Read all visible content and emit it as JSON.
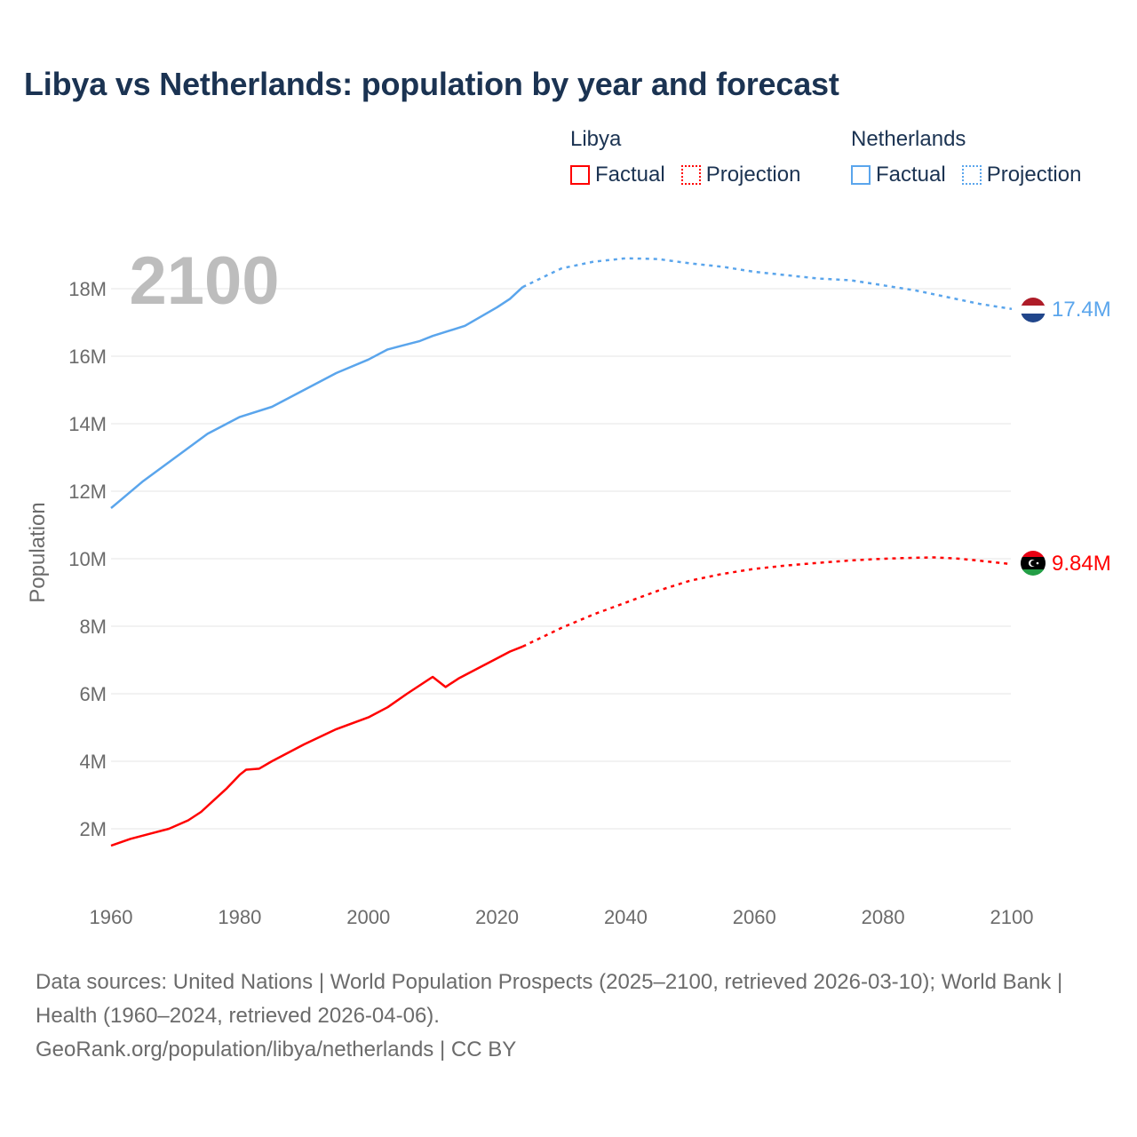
{
  "title": "Libya vs Netherlands: population by year and forecast",
  "legend": {
    "groups": [
      {
        "name": "Libya",
        "color": "#ff0000",
        "factual": "Factual",
        "projection": "Projection"
      },
      {
        "name": "Netherlands",
        "color": "#5aa5ec",
        "factual": "Factual",
        "projection": "Projection"
      }
    ]
  },
  "footer": {
    "sources": "Data sources: United Nations | World Population Prospects (2025–2100, retrieved 2026-03-10); World Bank | Health (1960–2024, retrieved 2026-04-06).",
    "link": "GeoRank.org/population/libya/netherlands | CC BY"
  },
  "chart_data": {
    "type": "line",
    "title": "Libya vs Netherlands: population by year and forecast",
    "ylabel": "Population",
    "xlabel": "",
    "year_overlay": "2100",
    "xlim": [
      1960,
      2100
    ],
    "ylim": [
      0,
      19.5
    ],
    "x_ticks": [
      1960,
      1980,
      2000,
      2020,
      2040,
      2060,
      2080,
      2100
    ],
    "y_ticks": [
      {
        "v": 2,
        "label": "2M"
      },
      {
        "v": 4,
        "label": "4M"
      },
      {
        "v": 6,
        "label": "6M"
      },
      {
        "v": 8,
        "label": "8M"
      },
      {
        "v": 10,
        "label": "10M"
      },
      {
        "v": 12,
        "label": "12M"
      },
      {
        "v": 14,
        "label": "14M"
      },
      {
        "v": 16,
        "label": "16M"
      },
      {
        "v": 18,
        "label": "18M"
      }
    ],
    "grid": true,
    "series": [
      {
        "name": "Netherlands",
        "color": "#5aa5ec",
        "end_label": "17.4M",
        "factual": [
          [
            1960,
            11.5
          ],
          [
            1965,
            12.3
          ],
          [
            1970,
            13.0
          ],
          [
            1975,
            13.7
          ],
          [
            1980,
            14.2
          ],
          [
            1985,
            14.5
          ],
          [
            1990,
            15.0
          ],
          [
            1995,
            15.5
          ],
          [
            2000,
            15.9
          ],
          [
            2003,
            16.2
          ],
          [
            2005,
            16.3
          ],
          [
            2008,
            16.45
          ],
          [
            2010,
            16.6
          ],
          [
            2015,
            16.9
          ],
          [
            2020,
            17.45
          ],
          [
            2022,
            17.7
          ],
          [
            2024,
            18.05
          ]
        ],
        "projection": [
          [
            2024,
            18.05
          ],
          [
            2030,
            18.6
          ],
          [
            2035,
            18.8
          ],
          [
            2040,
            18.9
          ],
          [
            2045,
            18.88
          ],
          [
            2050,
            18.75
          ],
          [
            2055,
            18.65
          ],
          [
            2060,
            18.5
          ],
          [
            2065,
            18.4
          ],
          [
            2070,
            18.3
          ],
          [
            2075,
            18.25
          ],
          [
            2080,
            18.1
          ],
          [
            2085,
            17.95
          ],
          [
            2090,
            17.75
          ],
          [
            2095,
            17.55
          ],
          [
            2100,
            17.4
          ]
        ]
      },
      {
        "name": "Libya",
        "color": "#ff0000",
        "end_label": "9.84M",
        "factual": [
          [
            1960,
            1.5
          ],
          [
            1963,
            1.7
          ],
          [
            1966,
            1.85
          ],
          [
            1969,
            2.0
          ],
          [
            1972,
            2.25
          ],
          [
            1974,
            2.5
          ],
          [
            1976,
            2.85
          ],
          [
            1978,
            3.2
          ],
          [
            1980,
            3.6
          ],
          [
            1981,
            3.75
          ],
          [
            1983,
            3.78
          ],
          [
            1985,
            4.0
          ],
          [
            1990,
            4.5
          ],
          [
            1995,
            4.95
          ],
          [
            2000,
            5.3
          ],
          [
            2003,
            5.6
          ],
          [
            2006,
            6.0
          ],
          [
            2010,
            6.5
          ],
          [
            2012,
            6.2
          ],
          [
            2014,
            6.45
          ],
          [
            2017,
            6.75
          ],
          [
            2020,
            7.05
          ],
          [
            2022,
            7.25
          ],
          [
            2024,
            7.4
          ]
        ],
        "projection": [
          [
            2024,
            7.4
          ],
          [
            2030,
            7.95
          ],
          [
            2035,
            8.35
          ],
          [
            2040,
            8.7
          ],
          [
            2045,
            9.05
          ],
          [
            2050,
            9.35
          ],
          [
            2055,
            9.55
          ],
          [
            2060,
            9.7
          ],
          [
            2065,
            9.8
          ],
          [
            2070,
            9.88
          ],
          [
            2075,
            9.95
          ],
          [
            2080,
            10.0
          ],
          [
            2085,
            10.03
          ],
          [
            2088,
            10.04
          ],
          [
            2092,
            10.0
          ],
          [
            2096,
            9.92
          ],
          [
            2100,
            9.84
          ]
        ]
      }
    ]
  }
}
